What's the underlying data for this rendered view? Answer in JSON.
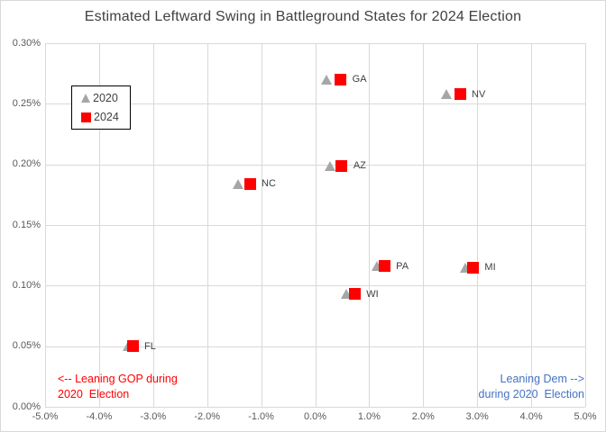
{
  "title": "Estimated Leftward Swing in Battleground States for 2024 Election",
  "legend": {
    "items": [
      {
        "label": "2020",
        "series": "2020"
      },
      {
        "label": "2024",
        "series": "2024"
      }
    ]
  },
  "annotations": {
    "gop": {
      "lines": [
        "<-- Leaning GOP during",
        "2020  Election"
      ],
      "color": "#ff0000"
    },
    "dem": {
      "lines": [
        "Leaning Dem -->",
        "during 2020  Election"
      ],
      "color": "#4472c4"
    }
  },
  "chart_data": {
    "type": "scatter",
    "title": "Estimated Leftward Swing in Battleground States for 2024 Election",
    "grid": true,
    "legend_position": "inside-upper-left",
    "x_axis": {
      "min": -5,
      "max": 5,
      "tick_values": [
        -5,
        -4,
        -3,
        -2,
        -1,
        0,
        1,
        2,
        3,
        4,
        5
      ],
      "tick_labels": [
        "-5.0%",
        "-4.0%",
        "-3.0%",
        "-2.0%",
        "-1.0%",
        "0.0%",
        "1.0%",
        "2.0%",
        "3.0%",
        "4.0%",
        "5.0%"
      ]
    },
    "y_axis": {
      "min": 0,
      "max": 0.3,
      "tick_values": [
        0,
        0.05,
        0.1,
        0.15,
        0.2,
        0.25,
        0.3
      ],
      "tick_labels": [
        "0.00%",
        "0.05%",
        "0.10%",
        "0.15%",
        "0.20%",
        "0.25%",
        "0.30%"
      ]
    },
    "series": [
      {
        "name": "2020",
        "marker": "triangle",
        "color": "#a6a6a6"
      },
      {
        "name": "2024",
        "marker": "square",
        "color": "#ff0000"
      }
    ],
    "points": [
      {
        "state": "GA",
        "x_2020": 0.22,
        "x_2024": 0.47,
        "y": 0.27
      },
      {
        "state": "NV",
        "x_2020": 2.43,
        "x_2024": 2.68,
        "y": 0.258
      },
      {
        "state": "AZ",
        "x_2020": 0.28,
        "x_2024": 0.49,
        "y": 0.199
      },
      {
        "state": "NC",
        "x_2020": -1.42,
        "x_2024": -1.21,
        "y": 0.184
      },
      {
        "state": "PA",
        "x_2020": 1.15,
        "x_2024": 1.28,
        "y": 0.116
      },
      {
        "state": "MI",
        "x_2020": 2.79,
        "x_2024": 2.92,
        "y": 0.115
      },
      {
        "state": "WI",
        "x_2020": 0.59,
        "x_2024": 0.73,
        "y": 0.093
      },
      {
        "state": "FL",
        "x_2020": -3.45,
        "x_2024": -3.38,
        "y": 0.05
      }
    ],
    "colors": {
      "grid": "#d9d9d9",
      "tick_label": "#595959",
      "state_label": "#404040",
      "title": "#404040",
      "series_2020": "#a6a6a6",
      "series_2024": "#ff0000"
    }
  }
}
